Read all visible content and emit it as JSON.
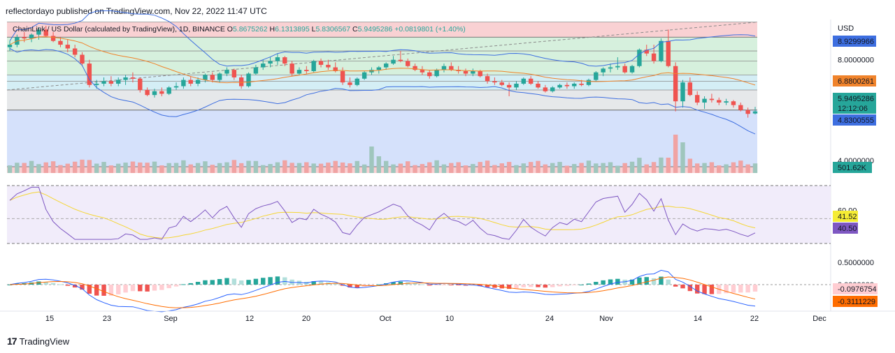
{
  "header": {
    "text": "reflectordayo published on TradingView.com, Nov 22, 2022 11:47 UTC"
  },
  "footer": {
    "logo": "17",
    "brand": "TradingView"
  },
  "colors": {
    "up": "#26a69a",
    "down": "#ef5350",
    "ma": "#f0832b",
    "bb": "#3d6ee0",
    "rsi": "#7e57c2",
    "rsi_ma": "#f5d634",
    "macd": "#2962ff",
    "signal": "#ff6d00"
  },
  "chart_data": {
    "type": "candlestick",
    "title": "ChainLink / US Dollar (calculated by TradingView), 1D, BINANCE",
    "ohlc": {
      "o_label": "O",
      "o": "5.8675262",
      "h_label": "H",
      "h": "6.1313895",
      "l_label": "L",
      "l": "5.8306567",
      "c_label": "C",
      "c": "5.9495286",
      "change": "+0.0819801 (+1.40%)"
    },
    "currency": "USD",
    "ylim": [
      3.5,
      9.6
    ],
    "y_ticks": [
      "8.0000000",
      "4.0000000"
    ],
    "price_labels": {
      "bb_upper": "8.9299966",
      "ma": "6.8800261",
      "last": "5.9495286",
      "countdown": "12:12:06",
      "bb_lower": "4.8300555",
      "volume": "501.62K"
    },
    "x_ticks": [
      "15",
      "23",
      "Sep",
      "12",
      "20",
      "Oct",
      "10",
      "24",
      "Nov",
      "14",
      "22",
      "Dec"
    ],
    "candles_ohlc": [
      [
        8.5,
        8.75,
        8.35,
        8.6
      ],
      [
        8.6,
        9.0,
        8.5,
        8.9
      ],
      [
        8.9,
        9.1,
        8.7,
        8.85
      ],
      [
        8.85,
        9.05,
        8.7,
        9.0
      ],
      [
        9.0,
        9.3,
        8.8,
        9.2
      ],
      [
        9.2,
        9.35,
        8.9,
        8.95
      ],
      [
        8.95,
        9.1,
        8.7,
        8.75
      ],
      [
        8.75,
        8.9,
        8.5,
        8.6
      ],
      [
        8.6,
        8.8,
        8.3,
        8.45
      ],
      [
        8.45,
        8.6,
        8.1,
        8.2
      ],
      [
        8.2,
        8.3,
        7.75,
        7.85
      ],
      [
        7.85,
        8.0,
        6.9,
        7.0
      ],
      [
        7.0,
        7.2,
        6.85,
        7.05
      ],
      [
        7.05,
        7.3,
        6.95,
        7.15
      ],
      [
        7.15,
        7.35,
        6.95,
        7.05
      ],
      [
        7.05,
        7.3,
        6.95,
        7.2
      ],
      [
        7.2,
        7.4,
        7.0,
        7.3
      ],
      [
        7.3,
        7.5,
        7.1,
        7.25
      ],
      [
        7.25,
        7.3,
        6.7,
        6.8
      ],
      [
        6.8,
        6.9,
        6.55,
        6.6
      ],
      [
        6.6,
        6.85,
        6.5,
        6.75
      ],
      [
        6.75,
        6.9,
        6.55,
        6.65
      ],
      [
        6.65,
        6.95,
        6.6,
        6.9
      ],
      [
        6.9,
        7.1,
        6.8,
        6.95
      ],
      [
        6.95,
        7.3,
        6.85,
        7.2
      ],
      [
        7.2,
        7.35,
        6.95,
        7.05
      ],
      [
        7.05,
        7.3,
        6.95,
        7.2
      ],
      [
        7.2,
        7.45,
        7.1,
        7.4
      ],
      [
        7.4,
        7.5,
        7.1,
        7.2
      ],
      [
        7.2,
        7.5,
        7.1,
        7.45
      ],
      [
        7.45,
        7.7,
        7.35,
        7.6
      ],
      [
        7.6,
        7.65,
        7.2,
        7.3
      ],
      [
        7.3,
        7.4,
        6.85,
        6.95
      ],
      [
        6.95,
        7.5,
        6.9,
        7.45
      ],
      [
        7.45,
        7.8,
        7.4,
        7.7
      ],
      [
        7.7,
        8.0,
        7.6,
        7.85
      ],
      [
        7.85,
        8.1,
        7.7,
        7.95
      ],
      [
        7.95,
        8.25,
        7.8,
        8.1
      ],
      [
        8.1,
        8.15,
        7.75,
        7.85
      ],
      [
        7.85,
        7.95,
        7.35,
        7.45
      ],
      [
        7.45,
        7.7,
        7.4,
        7.6
      ],
      [
        7.6,
        7.75,
        7.45,
        7.55
      ],
      [
        7.55,
        8.0,
        7.5,
        7.95
      ],
      [
        7.95,
        8.05,
        7.7,
        7.8
      ],
      [
        7.8,
        8.0,
        7.6,
        7.7
      ],
      [
        7.7,
        7.9,
        7.5,
        7.55
      ],
      [
        7.55,
        7.7,
        7.0,
        7.1
      ],
      [
        7.1,
        7.3,
        6.9,
        7.0
      ],
      [
        7.0,
        7.3,
        6.95,
        7.25
      ],
      [
        7.25,
        7.55,
        7.2,
        7.5
      ],
      [
        7.5,
        7.7,
        7.4,
        7.6
      ],
      [
        7.6,
        7.75,
        7.45,
        7.7
      ],
      [
        7.7,
        7.9,
        7.6,
        7.85
      ],
      [
        7.85,
        8.15,
        7.8,
        8.0
      ],
      [
        8.0,
        8.35,
        7.9,
        7.95
      ],
      [
        7.95,
        8.05,
        7.7,
        7.75
      ],
      [
        7.75,
        7.85,
        7.55,
        7.6
      ],
      [
        7.6,
        7.75,
        7.4,
        7.5
      ],
      [
        7.5,
        7.6,
        7.25,
        7.35
      ],
      [
        7.35,
        7.65,
        7.3,
        7.6
      ],
      [
        7.6,
        7.85,
        7.5,
        7.75
      ],
      [
        7.75,
        7.9,
        7.55,
        7.6
      ],
      [
        7.6,
        7.75,
        7.45,
        7.55
      ],
      [
        7.55,
        7.65,
        7.35,
        7.45
      ],
      [
        7.45,
        7.65,
        7.35,
        7.55
      ],
      [
        7.55,
        7.6,
        7.3,
        7.35
      ],
      [
        7.35,
        7.45,
        7.05,
        7.15
      ],
      [
        7.15,
        7.3,
        7.0,
        7.1
      ],
      [
        7.1,
        7.2,
        6.95,
        7.0
      ],
      [
        7.0,
        7.1,
        6.55,
        6.9
      ],
      [
        6.9,
        7.15,
        6.8,
        7.05
      ],
      [
        7.05,
        7.3,
        7.0,
        7.25
      ],
      [
        7.25,
        7.35,
        7.0,
        7.05
      ],
      [
        7.05,
        7.15,
        6.85,
        6.9
      ],
      [
        6.9,
        7.0,
        6.7,
        6.75
      ],
      [
        6.75,
        6.95,
        6.7,
        6.9
      ],
      [
        6.9,
        7.05,
        6.85,
        7.0
      ],
      [
        7.0,
        7.1,
        6.85,
        6.95
      ],
      [
        6.95,
        7.1,
        6.85,
        7.05
      ],
      [
        7.05,
        7.2,
        6.95,
        7.0
      ],
      [
        7.0,
        7.25,
        6.95,
        7.2
      ],
      [
        7.2,
        7.55,
        7.15,
        7.5
      ],
      [
        7.5,
        7.7,
        7.35,
        7.65
      ],
      [
        7.65,
        7.85,
        7.5,
        7.7
      ],
      [
        7.7,
        8.1,
        7.6,
        7.75
      ],
      [
        7.75,
        7.85,
        7.45,
        7.5
      ],
      [
        7.5,
        7.8,
        7.45,
        7.75
      ],
      [
        7.75,
        8.45,
        7.7,
        8.4
      ],
      [
        8.4,
        8.6,
        8.15,
        8.25
      ],
      [
        8.25,
        8.6,
        7.85,
        7.95
      ],
      [
        7.95,
        8.85,
        7.9,
        8.75
      ],
      [
        8.75,
        9.2,
        7.7,
        7.75
      ],
      [
        7.75,
        7.9,
        5.95,
        6.35
      ],
      [
        6.35,
        7.2,
        6.1,
        7.1
      ],
      [
        7.1,
        7.3,
        6.55,
        6.6
      ],
      [
        6.6,
        6.75,
        6.2,
        6.3
      ],
      [
        6.3,
        6.55,
        6.05,
        6.45
      ],
      [
        6.45,
        6.65,
        6.3,
        6.4
      ],
      [
        6.4,
        6.5,
        6.2,
        6.3
      ],
      [
        6.3,
        6.45,
        6.2,
        6.35
      ],
      [
        6.35,
        6.4,
        6.1,
        6.2
      ],
      [
        6.2,
        6.3,
        5.95,
        6.0
      ],
      [
        6.0,
        6.1,
        5.7,
        5.85
      ],
      [
        5.8675262,
        6.1313895,
        5.8306567,
        5.9495286
      ]
    ],
    "rsi": {
      "ticks": [
        "60.00"
      ],
      "value_labels": [
        "41.52",
        "40.50"
      ]
    },
    "macd": {
      "ticks": [
        "0.5000000",
        "0.0000000"
      ],
      "value_labels": [
        "-0.0976754",
        "-0.3111229"
      ]
    }
  }
}
